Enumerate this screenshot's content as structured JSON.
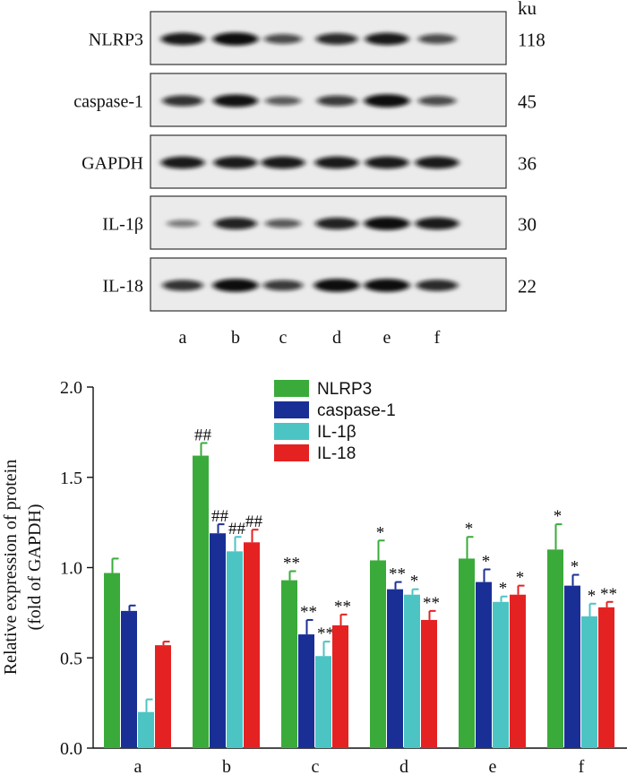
{
  "blot": {
    "unit_label": "ku",
    "lanes": [
      "a",
      "b",
      "c",
      "d",
      "e",
      "f"
    ],
    "rows": [
      {
        "protein": "NLRP3",
        "mw": "118",
        "intensity": [
          0.85,
          0.95,
          0.55,
          0.75,
          0.85,
          0.55
        ]
      },
      {
        "protein": "caspase-1",
        "mw": "45",
        "intensity": [
          0.7,
          0.9,
          0.45,
          0.65,
          0.95,
          0.55
        ]
      },
      {
        "protein": "GAPDH",
        "mw": "36",
        "intensity": [
          0.85,
          0.85,
          0.85,
          0.85,
          0.85,
          0.85
        ]
      },
      {
        "protein": "IL-1β",
        "mw": "30",
        "intensity": [
          0.25,
          0.8,
          0.45,
          0.8,
          0.95,
          0.85
        ]
      },
      {
        "protein": "IL-18",
        "mw": "22",
        "intensity": [
          0.7,
          0.95,
          0.65,
          0.95,
          0.95,
          0.75
        ]
      }
    ]
  },
  "chart_data": {
    "type": "bar",
    "title": "",
    "xlabel": "",
    "ylabel": "Relative expression of protein",
    "ylabel_sub": "(fold of GAPDH)",
    "ylim": [
      0,
      2.0
    ],
    "yticks": [
      "0.0",
      "0.5",
      "1.0",
      "1.5",
      "2.0"
    ],
    "categories": [
      "a",
      "b",
      "c",
      "d",
      "e",
      "f"
    ],
    "legend_position": "top-right",
    "series": [
      {
        "name": "NLRP3",
        "color": "#3aab3a",
        "values": [
          0.97,
          1.62,
          0.93,
          1.04,
          1.05,
          1.1
        ],
        "errors": [
          0.08,
          0.07,
          0.05,
          0.11,
          0.12,
          0.14
        ],
        "marks": [
          "",
          "##",
          "**",
          "*",
          "*",
          "*"
        ]
      },
      {
        "name": "caspase-1",
        "color": "#1a2f96",
        "values": [
          0.76,
          1.19,
          0.63,
          0.88,
          0.92,
          0.9
        ],
        "errors": [
          0.03,
          0.05,
          0.08,
          0.04,
          0.07,
          0.06
        ],
        "marks": [
          "",
          "##",
          "**",
          "**",
          "*",
          "*"
        ]
      },
      {
        "name": "IL-1β",
        "color": "#4cc4c4",
        "values": [
          0.2,
          1.09,
          0.51,
          0.85,
          0.81,
          0.73
        ],
        "errors": [
          0.07,
          0.08,
          0.08,
          0.03,
          0.03,
          0.07
        ],
        "marks": [
          "",
          "##",
          "**",
          "*",
          "*",
          "*"
        ]
      },
      {
        "name": "IL-18",
        "color": "#e52222",
        "values": [
          0.57,
          1.14,
          0.68,
          0.71,
          0.85,
          0.78
        ],
        "errors": [
          0.02,
          0.07,
          0.06,
          0.05,
          0.05,
          0.03
        ],
        "marks": [
          "",
          "##",
          "**",
          "**",
          "*",
          "**"
        ]
      }
    ]
  }
}
